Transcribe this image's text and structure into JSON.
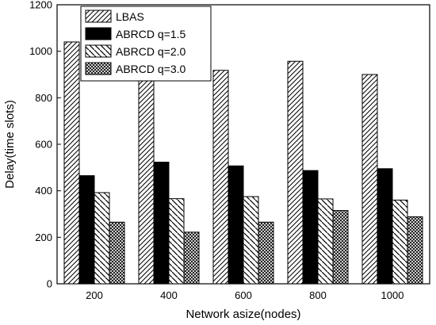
{
  "chart_data": {
    "type": "bar",
    "title": "",
    "xlabel": "Network asize(nodes)",
    "ylabel": "Delay(time slots)",
    "categories": [
      "200",
      "400",
      "600",
      "800",
      "1000"
    ],
    "ylim": [
      0,
      1200
    ],
    "yticks": [
      "0",
      "200",
      "400",
      "600",
      "800",
      "1000",
      "1200"
    ],
    "grid": false,
    "legend_position": "top-left",
    "series": [
      {
        "name": "LBAS",
        "pattern": "diagonal-hatch",
        "values": [
          1040,
          888,
          918,
          957,
          900
        ]
      },
      {
        "name": "ABRCD q=1.5",
        "pattern": "solid-black",
        "values": [
          465,
          523,
          507,
          487,
          495
        ]
      },
      {
        "name": "ABRCD q=2.0",
        "pattern": "reverse-diagonal-hatch",
        "values": [
          392,
          366,
          375,
          365,
          360
        ]
      },
      {
        "name": "ABRCD q=3.0",
        "pattern": "crosshatch",
        "values": [
          265,
          222,
          265,
          315,
          288
        ]
      }
    ]
  }
}
